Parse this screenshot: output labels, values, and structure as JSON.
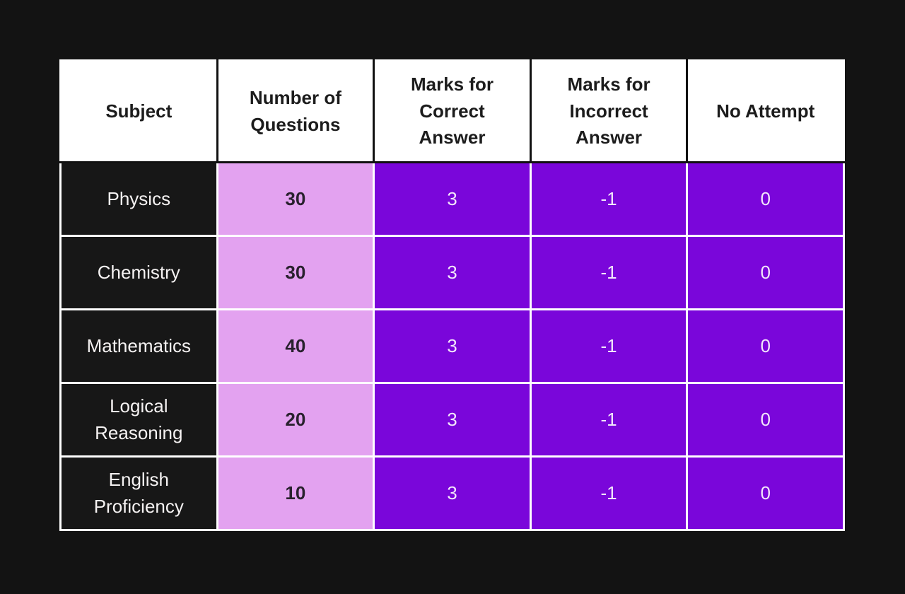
{
  "table": {
    "columns": [
      {
        "label": "Subject"
      },
      {
        "label": "Number of\nQuestions"
      },
      {
        "label": "Marks for\nCorrect\nAnswer"
      },
      {
        "label": "Marks for\nIncorrect\nAnswer"
      },
      {
        "label": "No Attempt"
      }
    ],
    "rows": [
      {
        "subject": "Physics",
        "questions": "30",
        "correct": "3",
        "incorrect": "-1",
        "no_attempt": "0"
      },
      {
        "subject": "Chemistry",
        "questions": "30",
        "correct": "3",
        "incorrect": "-1",
        "no_attempt": "0"
      },
      {
        "subject": "Mathematics",
        "questions": "40",
        "correct": "3",
        "incorrect": "-1",
        "no_attempt": "0"
      },
      {
        "subject": "Logical\nReasoning",
        "questions": "20",
        "correct": "3",
        "incorrect": "-1",
        "no_attempt": "0"
      },
      {
        "subject": "English\nProficiency",
        "questions": "10",
        "correct": "3",
        "incorrect": "-1",
        "no_attempt": "0"
      }
    ]
  },
  "chart_data": {
    "type": "table",
    "columns": [
      "Subject",
      "Number of Questions",
      "Marks for Correct Answer",
      "Marks for Incorrect Answer",
      "No Attempt"
    ],
    "rows": [
      [
        "Physics",
        30,
        3,
        -1,
        0
      ],
      [
        "Chemistry",
        30,
        3,
        -1,
        0
      ],
      [
        "Mathematics",
        40,
        3,
        -1,
        0
      ],
      [
        "Logical Reasoning",
        20,
        3,
        -1,
        0
      ],
      [
        "English Proficiency",
        10,
        3,
        -1,
        0
      ]
    ]
  },
  "colors": {
    "page_background": "#131313",
    "header_background": "#ffffff",
    "header_text": "#1c1c1c",
    "subject_cell_background": "#171717",
    "subject_cell_text": "#f5f2f2",
    "questions_cell_background": "#e3a2f0",
    "questions_cell_text": "#29212e",
    "marks_cell_background": "#7a06da",
    "marks_cell_text": "#f2e6fa",
    "border_light": "#ffffff",
    "border_dark": "#111111"
  }
}
